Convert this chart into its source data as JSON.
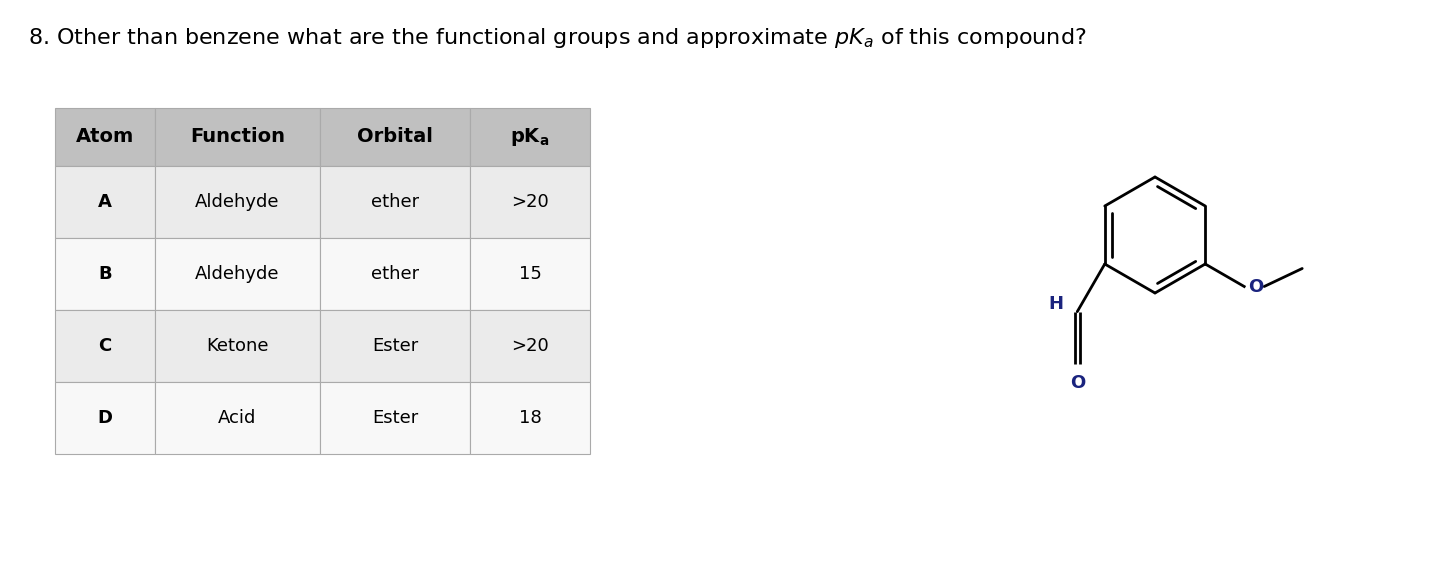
{
  "background_color": "#ffffff",
  "table_header_bg": "#c0c0c0",
  "table_row_bg_odd": "#ebebeb",
  "table_row_bg_even": "#f8f8f8",
  "table_border_color": "#aaaaaa",
  "columns": [
    "Atom",
    "Function",
    "Orbital",
    "pKa"
  ],
  "rows": [
    [
      "A",
      "Aldehyde",
      "ether",
      ">20"
    ],
    [
      "B",
      "Aldehyde",
      "ether",
      "15"
    ],
    [
      "C",
      "Ketone",
      "Ester",
      ">20"
    ],
    [
      "D",
      "Acid",
      "Ester",
      "18"
    ]
  ],
  "title_font_size": 16,
  "header_font_size": 13,
  "cell_font_size": 13,
  "mol_H_color": "#1a237e",
  "mol_O_color": "#1a237e",
  "mol_line_color": "#000000"
}
